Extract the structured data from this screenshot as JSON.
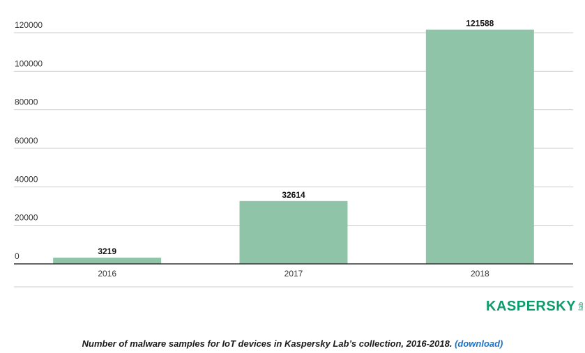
{
  "chart_data": {
    "type": "bar",
    "categories": [
      "2016",
      "2017",
      "2018"
    ],
    "values": [
      3219,
      32614,
      121588
    ],
    "title": "",
    "xlabel": "",
    "ylabel": "",
    "ylim": [
      0,
      120000
    ],
    "yticks": [
      0,
      20000,
      40000,
      60000,
      80000,
      100000,
      120000
    ],
    "grid": true,
    "bar_color": "#90c4a8"
  },
  "logo": {
    "text": "KASPERSKY",
    "sub": "lab",
    "color": "#0b9c6b"
  },
  "caption": {
    "text": "Number of malware samples for IoT devices in Kaspersky Lab’s collection, 2016-2018.",
    "link": "(download)",
    "link_color": "#1a73c8"
  }
}
